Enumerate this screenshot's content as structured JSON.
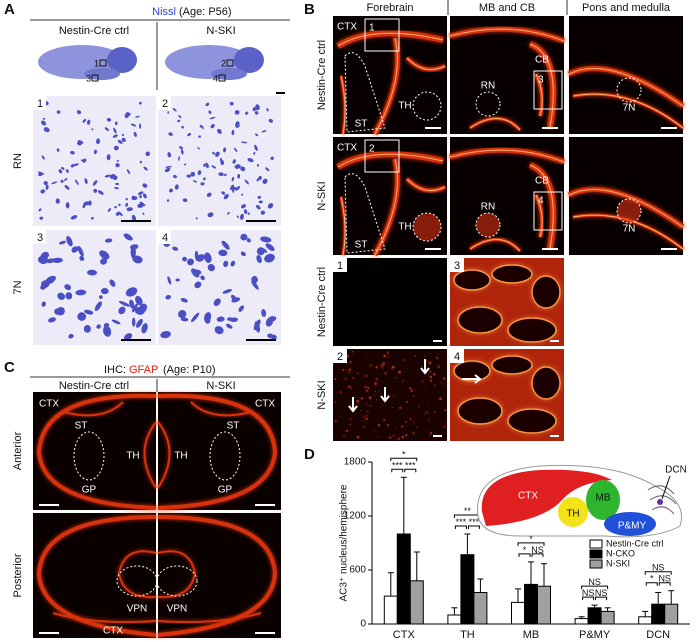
{
  "panels": {
    "A": {
      "letter": "A",
      "stain": "Nissl",
      "age": "(Age: P56)",
      "columns": [
        "Nestin-Cre ctrl",
        "N-SKI"
      ],
      "rows": [
        "RN",
        "7N"
      ],
      "tiles": [
        "1",
        "2",
        "3",
        "4"
      ]
    },
    "B": {
      "letter": "B",
      "columns": [
        "Forebrain",
        "MB and CB",
        "Pons and medulla"
      ],
      "rows": [
        "Nestin-Cre ctrl",
        "N-SKI",
        "Nestin-Cre ctrl",
        "N-SKI"
      ],
      "tile_labels": [
        [
          "CTX",
          "1",
          "ST",
          "TH"
        ],
        [
          "RN",
          "CB",
          "3"
        ],
        [
          "7N"
        ],
        [
          "CTX",
          "2",
          "ST",
          "TH"
        ],
        [
          "RN",
          "CB",
          "4"
        ],
        [
          "7N"
        ]
      ],
      "insets": [
        "1",
        "3",
        "2",
        "4"
      ]
    },
    "C": {
      "letter": "C",
      "method": "IHC:",
      "stain": "GFAP",
      "age": "(Age: P10)",
      "columns": [
        "Nestin-Cre ctrl",
        "N-SKI"
      ],
      "rows": [
        "Anterior",
        "Posterior"
      ],
      "tile_labels": [
        [
          "CTX",
          "ST",
          "TH",
          "GP"
        ],
        [
          "CTX",
          "ST",
          "TH",
          "GP"
        ],
        [
          "VPN",
          "CTX"
        ],
        [
          "VPN"
        ]
      ]
    }
  },
  "chart_data": {
    "type": "bar",
    "panel_letter": "D",
    "ylabel": "AC3⁺ nucleus/hemisphere",
    "categories": [
      "CTX",
      "TH",
      "MB",
      "P&MY",
      "DCN"
    ],
    "series": [
      {
        "name": "Nestin-Cre ctrl",
        "color": "#ffffff",
        "values": [
          310,
          100,
          240,
          60,
          80
        ],
        "errors": [
          260,
          80,
          150,
          20,
          60
        ]
      },
      {
        "name": "N-CKO",
        "color": "#000000",
        "values": [
          1000,
          770,
          440,
          180,
          220
        ],
        "errors": [
          630,
          230,
          250,
          30,
          130
        ]
      },
      {
        "name": "N-SKI",
        "color": "#a0a0a0",
        "values": [
          480,
          350,
          420,
          140,
          220
        ],
        "errors": [
          320,
          150,
          250,
          40,
          150
        ]
      }
    ],
    "significance": [
      [
        "***",
        "***",
        "*"
      ],
      [
        "***",
        "***",
        "**"
      ],
      [
        "*",
        "NS",
        "*"
      ],
      [
        "NS",
        "NS",
        "NS"
      ],
      [
        "*",
        "NS",
        "NS"
      ]
    ],
    "ylim": [
      0,
      1800
    ],
    "yticks": [
      0,
      600,
      1200,
      1800
    ],
    "grid": false
  }
}
